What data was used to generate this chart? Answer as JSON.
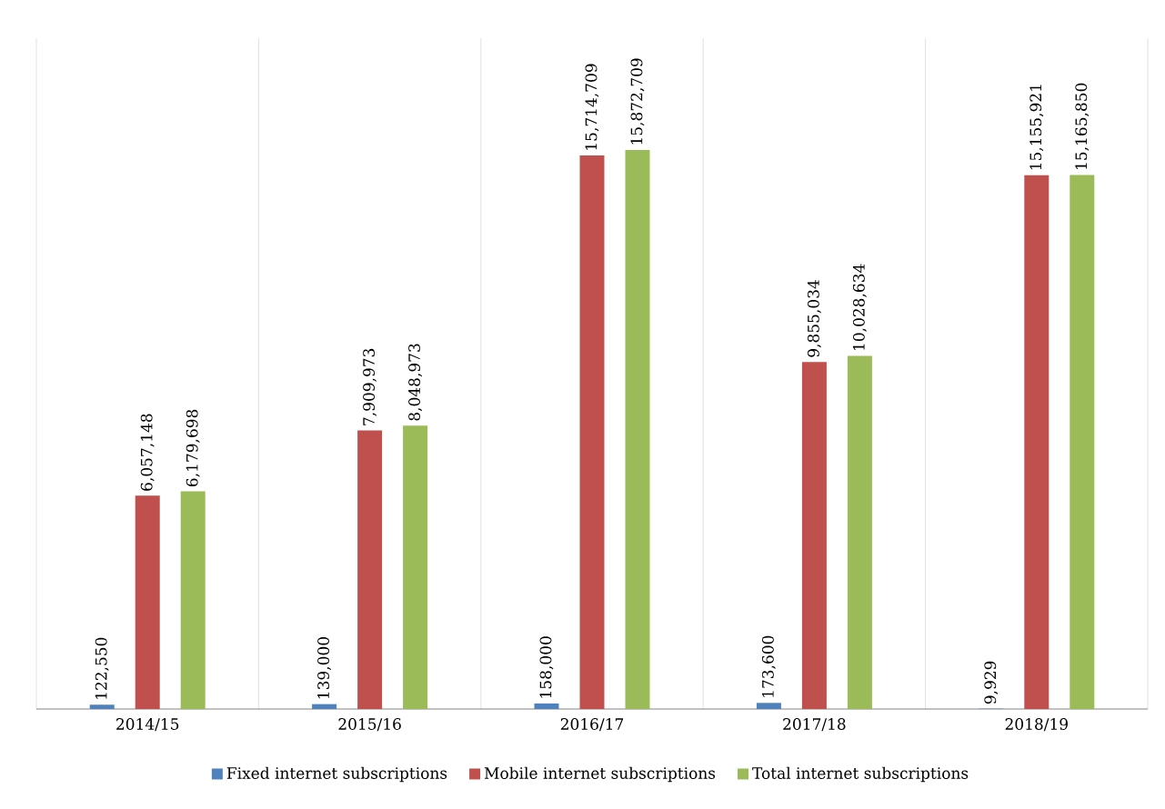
{
  "chart_data": {
    "type": "bar",
    "categories": [
      "2014/15",
      "2015/16",
      "2016/17",
      "2017/18",
      "2018/19"
    ],
    "series": [
      {
        "name": "Fixed internet subscriptions",
        "color": "#4f81bd",
        "values": [
          122550,
          139000,
          158000,
          173600,
          9929
        ],
        "value_labels": [
          "122,550",
          "139,000",
          "158,000",
          "173,600",
          "9,929"
        ]
      },
      {
        "name": "Mobile internet subscriptions",
        "color": "#c0504d",
        "values": [
          6057148,
          7909973,
          15714709,
          9855034,
          15155921
        ],
        "value_labels": [
          "6,057,148",
          "7,909,973",
          "15,714,709",
          "9,855,034",
          "15,155,921"
        ]
      },
      {
        "name": "Total internet subscriptions",
        "color": "#9bbb59",
        "values": [
          6179698,
          8048973,
          15872709,
          10028634,
          15165850
        ],
        "value_labels": [
          "6,179,698",
          "8,048,973",
          "15,872,709",
          "10,028,634",
          "15,165,850"
        ]
      }
    ],
    "grid": "x",
    "legend": "bottom"
  }
}
